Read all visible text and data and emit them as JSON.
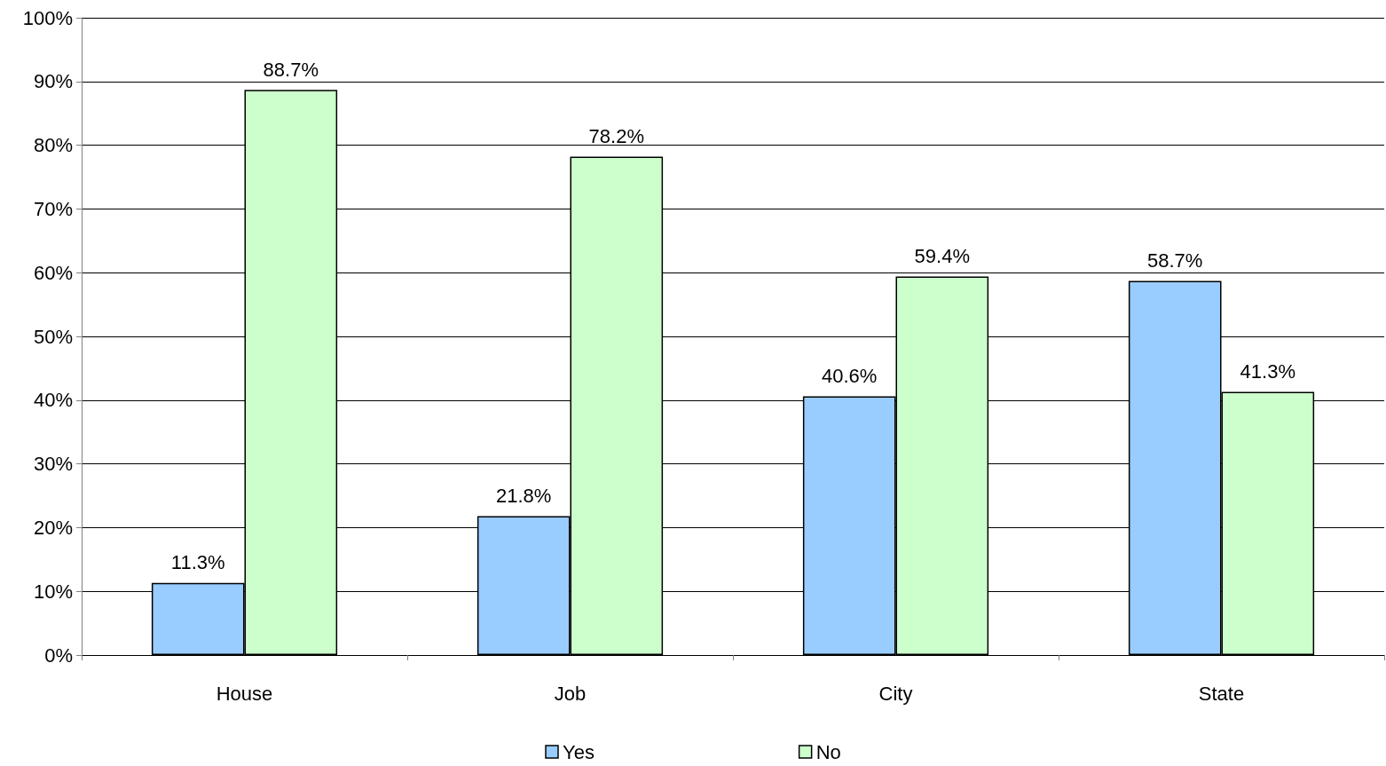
{
  "chart_data": {
    "type": "bar",
    "categories": [
      "House",
      "Job",
      "City",
      "State"
    ],
    "series": [
      {
        "name": "Yes",
        "color": "#99ccff",
        "values": [
          11.3,
          21.8,
          40.6,
          58.7
        ],
        "value_labels": [
          "11.3%",
          "21.8%",
          "40.6%",
          "58.7%"
        ]
      },
      {
        "name": "No",
        "color": "#ccffcc",
        "values": [
          88.7,
          78.2,
          59.4,
          41.3
        ],
        "value_labels": [
          "88.7%",
          "78.2%",
          "59.4%",
          "41.3%"
        ]
      }
    ],
    "ylim": [
      0,
      100
    ],
    "yticks": [
      {
        "value": 0,
        "label": "0%"
      },
      {
        "value": 10,
        "label": "10%"
      },
      {
        "value": 20,
        "label": "20%"
      },
      {
        "value": 30,
        "label": "30%"
      },
      {
        "value": 40,
        "label": "40%"
      },
      {
        "value": 50,
        "label": "50%"
      },
      {
        "value": 60,
        "label": "60%"
      },
      {
        "value": 70,
        "label": "70%"
      },
      {
        "value": 80,
        "label": "80%"
      },
      {
        "value": 90,
        "label": "90%"
      },
      {
        "value": 100,
        "label": "100%"
      }
    ],
    "grid": "y",
    "legend": "bottom"
  }
}
